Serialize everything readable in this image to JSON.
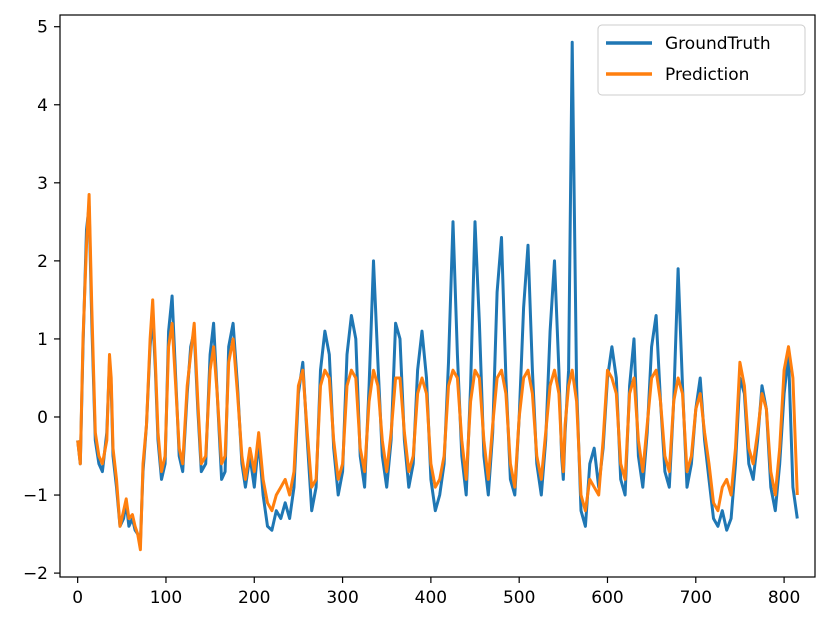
{
  "chart_data": {
    "type": "line",
    "title": "",
    "xlabel": "",
    "ylabel": "",
    "xlim": [
      -20,
      835
    ],
    "ylim": [
      -2.05,
      5.15
    ],
    "xticks": [
      0,
      100,
      200,
      300,
      400,
      500,
      600,
      700,
      800
    ],
    "yticks": [
      -2,
      -1,
      0,
      1,
      2,
      3,
      4,
      5
    ],
    "legend": {
      "position": "top-right",
      "entries": [
        "GroundTruth",
        "Prediction"
      ]
    },
    "grid": false,
    "series": [
      {
        "name": "GroundTruth",
        "color": "#1f77b4",
        "x": [
          0,
          3,
          6,
          10,
          13,
          16,
          20,
          24,
          28,
          33,
          36,
          38,
          40,
          44,
          48,
          52,
          55,
          58,
          62,
          65,
          68,
          71,
          74,
          78,
          82,
          85,
          88,
          91,
          95,
          99,
          103,
          107,
          111,
          115,
          119,
          124,
          128,
          132,
          136,
          140,
          145,
          150,
          154,
          158,
          163,
          167,
          171,
          176,
          181,
          186,
          190,
          195,
          200,
          205,
          210,
          215,
          220,
          225,
          230,
          235,
          240,
          245,
          250,
          255,
          260,
          265,
          270,
          275,
          280,
          285,
          290,
          295,
          300,
          305,
          310,
          315,
          320,
          325,
          330,
          335,
          340,
          345,
          350,
          355,
          360,
          365,
          370,
          375,
          380,
          385,
          390,
          395,
          400,
          405,
          410,
          415,
          420,
          425,
          430,
          435,
          440,
          445,
          450,
          455,
          460,
          465,
          470,
          475,
          480,
          485,
          490,
          495,
          500,
          505,
          510,
          515,
          520,
          525,
          530,
          535,
          540,
          545,
          548,
          550,
          552,
          556,
          560,
          565,
          570,
          575,
          580,
          585,
          590,
          595,
          600,
          605,
          610,
          615,
          620,
          625,
          630,
          635,
          640,
          645,
          650,
          655,
          660,
          665,
          670,
          675,
          680,
          685,
          690,
          695,
          700,
          705,
          710,
          715,
          720,
          725,
          730,
          735,
          740,
          745,
          750,
          755,
          760,
          765,
          770,
          775,
          780,
          785,
          790,
          795,
          800,
          805,
          810,
          815
        ],
        "y": [
          -0.3,
          -0.6,
          0.9,
          2.4,
          2.7,
          1.2,
          -0.3,
          -0.6,
          -0.7,
          -0.2,
          0.7,
          0.4,
          -0.5,
          -0.9,
          -1.4,
          -1.3,
          -1.1,
          -1.4,
          -1.3,
          -1.45,
          -1.5,
          -1.6,
          -0.7,
          -0.1,
          0.9,
          1.3,
          0.6,
          -0.3,
          -0.8,
          -0.6,
          1.1,
          1.55,
          0.5,
          -0.5,
          -0.7,
          0.3,
          0.9,
          1.1,
          0.1,
          -0.7,
          -0.6,
          0.8,
          1.2,
          0.3,
          -0.8,
          -0.7,
          0.9,
          1.2,
          0.4,
          -0.6,
          -0.9,
          -0.5,
          -0.9,
          -0.3,
          -1.0,
          -1.4,
          -1.45,
          -1.2,
          -1.3,
          -1.1,
          -1.3,
          -0.9,
          0.3,
          0.7,
          -0.3,
          -1.2,
          -0.9,
          0.6,
          1.1,
          0.8,
          -0.4,
          -1.0,
          -0.7,
          0.8,
          1.3,
          1.0,
          -0.5,
          -0.9,
          0.4,
          2.0,
          0.7,
          -0.5,
          -0.9,
          -0.3,
          1.2,
          1.0,
          -0.3,
          -0.9,
          -0.6,
          0.6,
          1.1,
          0.5,
          -0.8,
          -1.2,
          -1.0,
          -0.6,
          0.7,
          2.5,
          0.8,
          -0.5,
          -1.0,
          0.4,
          2.5,
          1.2,
          -0.5,
          -1.0,
          -0.2,
          1.6,
          2.3,
          0.5,
          -0.8,
          -1.0,
          0.0,
          1.4,
          2.2,
          0.6,
          -0.6,
          -1.0,
          -0.3,
          1.1,
          2.0,
          0.6,
          -0.5,
          -0.8,
          -0.2,
          0.6,
          4.8,
          0.4,
          -1.2,
          -1.4,
          -0.6,
          -0.4,
          -0.9,
          -0.4,
          0.5,
          0.9,
          0.5,
          -0.8,
          -1.0,
          0.4,
          1.0,
          -0.5,
          -0.9,
          -0.2,
          0.9,
          1.3,
          0.2,
          -0.7,
          -0.9,
          0.2,
          1.9,
          0.4,
          -0.9,
          -0.6,
          0.1,
          0.5,
          -0.3,
          -0.8,
          -1.3,
          -1.4,
          -1.2,
          -1.45,
          -1.3,
          -0.6,
          0.5,
          0.3,
          -0.6,
          -0.8,
          -0.3,
          0.4,
          0.1,
          -0.9,
          -1.2,
          -0.6,
          0.3,
          0.8,
          -0.9,
          -1.3
        ]
      },
      {
        "name": "Prediction",
        "color": "#ff7f0e",
        "x": [
          0,
          3,
          6,
          10,
          13,
          16,
          20,
          24,
          28,
          33,
          36,
          38,
          40,
          44,
          48,
          52,
          55,
          58,
          62,
          65,
          68,
          71,
          74,
          78,
          82,
          85,
          88,
          91,
          95,
          99,
          103,
          107,
          111,
          115,
          119,
          124,
          128,
          132,
          136,
          140,
          145,
          150,
          154,
          158,
          163,
          167,
          171,
          176,
          181,
          186,
          190,
          195,
          200,
          205,
          210,
          215,
          220,
          225,
          230,
          235,
          240,
          245,
          250,
          255,
          260,
          265,
          270,
          275,
          280,
          285,
          290,
          295,
          300,
          305,
          310,
          315,
          320,
          325,
          330,
          335,
          340,
          345,
          350,
          355,
          360,
          365,
          370,
          375,
          380,
          385,
          390,
          395,
          400,
          405,
          410,
          415,
          420,
          425,
          430,
          435,
          440,
          445,
          450,
          455,
          460,
          465,
          470,
          475,
          480,
          485,
          490,
          495,
          500,
          505,
          510,
          515,
          520,
          525,
          530,
          535,
          540,
          545,
          548,
          550,
          552,
          556,
          560,
          565,
          570,
          575,
          580,
          585,
          590,
          595,
          600,
          605,
          610,
          615,
          620,
          625,
          630,
          635,
          640,
          645,
          650,
          655,
          660,
          665,
          670,
          675,
          680,
          685,
          690,
          695,
          700,
          705,
          710,
          715,
          720,
          725,
          730,
          735,
          740,
          745,
          750,
          755,
          760,
          765,
          770,
          775,
          780,
          785,
          790,
          795,
          800,
          805,
          810,
          815
        ],
        "y": [
          -0.3,
          -0.6,
          1.0,
          2.2,
          2.85,
          1.4,
          -0.2,
          -0.5,
          -0.6,
          -0.3,
          0.8,
          0.5,
          -0.4,
          -0.8,
          -1.4,
          -1.2,
          -1.05,
          -1.3,
          -1.25,
          -1.4,
          -1.5,
          -1.7,
          -0.6,
          -0.1,
          1.0,
          1.5,
          0.7,
          -0.2,
          -0.7,
          -0.5,
          0.9,
          1.2,
          0.4,
          -0.4,
          -0.6,
          0.4,
          0.8,
          1.2,
          0.2,
          -0.6,
          -0.5,
          0.6,
          0.9,
          0.3,
          -0.6,
          -0.5,
          0.7,
          1.0,
          0.3,
          -0.5,
          -0.8,
          -0.4,
          -0.7,
          -0.2,
          -0.8,
          -1.1,
          -1.2,
          -1.0,
          -0.9,
          -0.8,
          -1.0,
          -0.7,
          0.4,
          0.6,
          -0.2,
          -0.9,
          -0.8,
          0.4,
          0.6,
          0.5,
          -0.3,
          -0.8,
          -0.6,
          0.4,
          0.6,
          0.5,
          -0.4,
          -0.7,
          0.2,
          0.6,
          0.4,
          -0.3,
          -0.7,
          -0.2,
          0.5,
          0.5,
          -0.2,
          -0.7,
          -0.5,
          0.3,
          0.5,
          0.3,
          -0.6,
          -0.9,
          -0.8,
          -0.5,
          0.4,
          0.6,
          0.5,
          -0.3,
          -0.8,
          0.2,
          0.6,
          0.5,
          -0.3,
          -0.8,
          -0.1,
          0.5,
          0.6,
          0.3,
          -0.6,
          -0.9,
          0.0,
          0.5,
          0.6,
          0.3,
          -0.5,
          -0.8,
          -0.2,
          0.4,
          0.6,
          0.3,
          -0.4,
          -0.7,
          -0.1,
          0.4,
          0.6,
          0.2,
          -1.0,
          -1.2,
          -0.8,
          -0.9,
          -1.0,
          -0.3,
          0.6,
          0.5,
          0.3,
          -0.6,
          -0.8,
          0.3,
          0.5,
          -0.3,
          -0.7,
          -0.1,
          0.5,
          0.6,
          0.2,
          -0.5,
          -0.7,
          0.2,
          0.5,
          0.3,
          -0.7,
          -0.5,
          0.1,
          0.3,
          -0.2,
          -0.6,
          -1.1,
          -1.2,
          -0.9,
          -0.8,
          -1.0,
          -0.4,
          0.7,
          0.4,
          -0.4,
          -0.6,
          -0.2,
          0.3,
          0.1,
          -0.7,
          -1.0,
          -0.4,
          0.6,
          0.9,
          0.5,
          -1.0
        ]
      }
    ]
  }
}
